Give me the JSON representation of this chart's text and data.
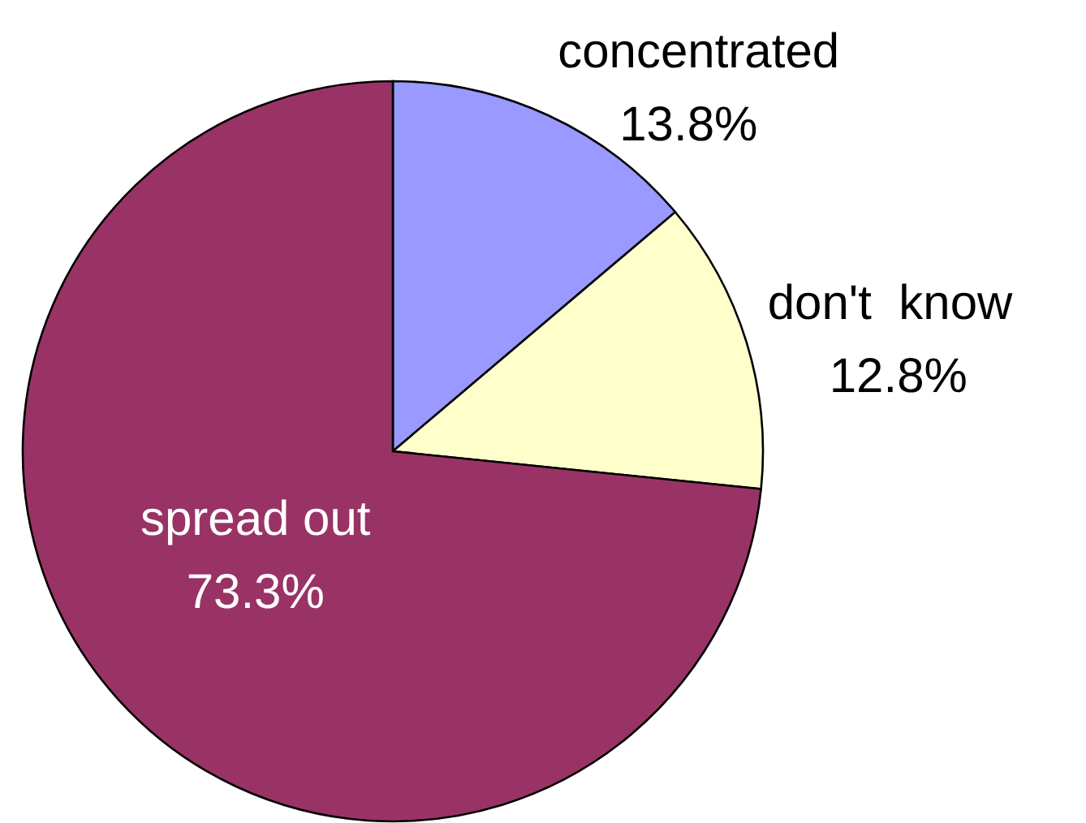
{
  "chart_data": {
    "type": "pie",
    "categories": [
      "concentrated",
      "don't  know",
      "spread out"
    ],
    "values": [
      13.8,
      12.8,
      73.3
    ],
    "colors": [
      "#9999ff",
      "#ffffcc",
      "#993366"
    ],
    "value_labels": [
      "13.8%",
      "12.8%",
      "73.3%"
    ]
  }
}
